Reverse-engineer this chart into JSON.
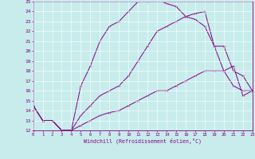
{
  "xlabel": "Windchill (Refroidissement éolien,°C)",
  "background_color": "#c8ecec",
  "line_color": "#800080",
  "xlim": [
    0,
    23
  ],
  "ylim": [
    12,
    25
  ],
  "xticks": [
    0,
    1,
    2,
    3,
    4,
    5,
    6,
    7,
    8,
    9,
    10,
    11,
    12,
    13,
    14,
    15,
    16,
    17,
    18,
    19,
    20,
    21,
    22,
    23
  ],
  "yticks": [
    12,
    13,
    14,
    15,
    16,
    17,
    18,
    19,
    20,
    21,
    22,
    23,
    24,
    25
  ],
  "line1_x": [
    0,
    1,
    2,
    3,
    4,
    5,
    6,
    7,
    8,
    9,
    10,
    11,
    12,
    13,
    14,
    15,
    16,
    17,
    18,
    19,
    20,
    21,
    22,
    23
  ],
  "line1_y": [
    14.5,
    13,
    13,
    12,
    12,
    16.5,
    18.5,
    21,
    22.5,
    23,
    24,
    25,
    25,
    25.2,
    24.8,
    24.5,
    23.5,
    23.2,
    22.5,
    20.5,
    18,
    16.5,
    16,
    16
  ],
  "line2_x": [
    0,
    1,
    2,
    3,
    4,
    5,
    6,
    7,
    8,
    9,
    10,
    11,
    12,
    13,
    14,
    15,
    16,
    17,
    18,
    19,
    20,
    21,
    22,
    23
  ],
  "line2_y": [
    14.5,
    13,
    13,
    12,
    12,
    13.5,
    14.5,
    15.5,
    16,
    16.5,
    17.5,
    19,
    20.5,
    22,
    22.5,
    23,
    23.5,
    23.8,
    24,
    20.5,
    20.5,
    18,
    17.5,
    16
  ],
  "line3_x": [
    0,
    1,
    2,
    3,
    4,
    5,
    6,
    7,
    8,
    9,
    10,
    11,
    12,
    13,
    14,
    15,
    16,
    17,
    18,
    19,
    20,
    21,
    22,
    23
  ],
  "line3_y": [
    14.5,
    13,
    13,
    12,
    12,
    12.5,
    13,
    13.5,
    13.8,
    14,
    14.5,
    15,
    15.5,
    16,
    16,
    16.5,
    17,
    17.5,
    18,
    18,
    18,
    18.5,
    15.5,
    16
  ]
}
